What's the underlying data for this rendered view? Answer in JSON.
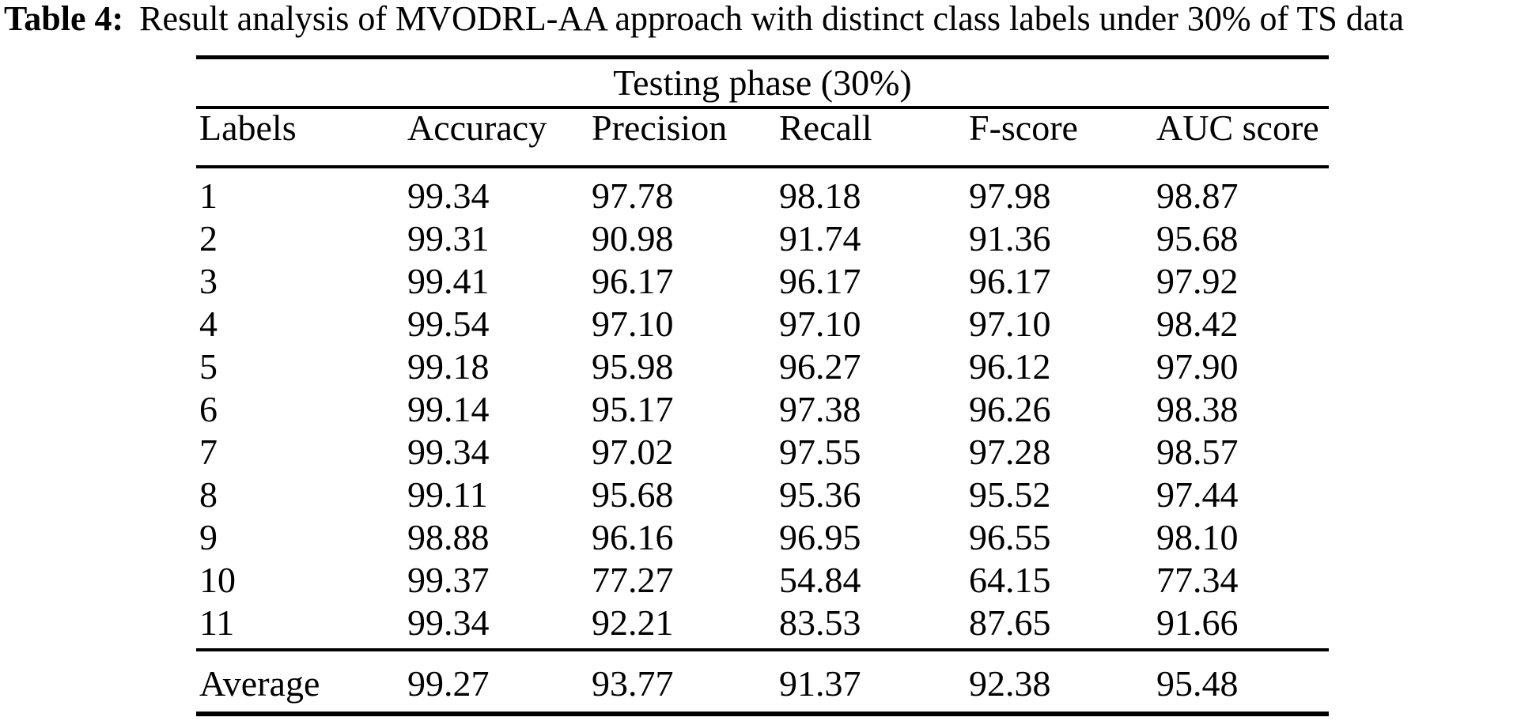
{
  "caption": {
    "label": "Table 4:",
    "text": "Result analysis of MVODRL-AA approach with distinct class labels under 30% of TS data"
  },
  "table": {
    "span_header": "Testing phase (30%)",
    "columns": [
      "Labels",
      "Accuracy",
      "Precision",
      "Recall",
      "F-score",
      "AUC score"
    ],
    "rows": [
      [
        "1",
        "99.34",
        "97.78",
        "98.18",
        "97.98",
        "98.87"
      ],
      [
        "2",
        "99.31",
        "90.98",
        "91.74",
        "91.36",
        "95.68"
      ],
      [
        "3",
        "99.41",
        "96.17",
        "96.17",
        "96.17",
        "97.92"
      ],
      [
        "4",
        "99.54",
        "97.10",
        "97.10",
        "97.10",
        "98.42"
      ],
      [
        "5",
        "99.18",
        "95.98",
        "96.27",
        "96.12",
        "97.90"
      ],
      [
        "6",
        "99.14",
        "95.17",
        "97.38",
        "96.26",
        "98.38"
      ],
      [
        "7",
        "99.34",
        "97.02",
        "97.55",
        "97.28",
        "98.57"
      ],
      [
        "8",
        "99.11",
        "95.68",
        "95.36",
        "95.52",
        "97.44"
      ],
      [
        "9",
        "98.88",
        "96.16",
        "96.95",
        "96.55",
        "98.10"
      ],
      [
        "10",
        "99.37",
        "77.27",
        "54.84",
        "64.15",
        "77.34"
      ],
      [
        "11",
        "99.34",
        "92.21",
        "83.53",
        "87.65",
        "91.66"
      ]
    ],
    "summary_row": [
      "Average",
      "99.27",
      "93.77",
      "91.37",
      "92.38",
      "95.48"
    ]
  },
  "colors": {
    "text": "#000000",
    "background": "#ffffff",
    "rule": "#000000"
  }
}
